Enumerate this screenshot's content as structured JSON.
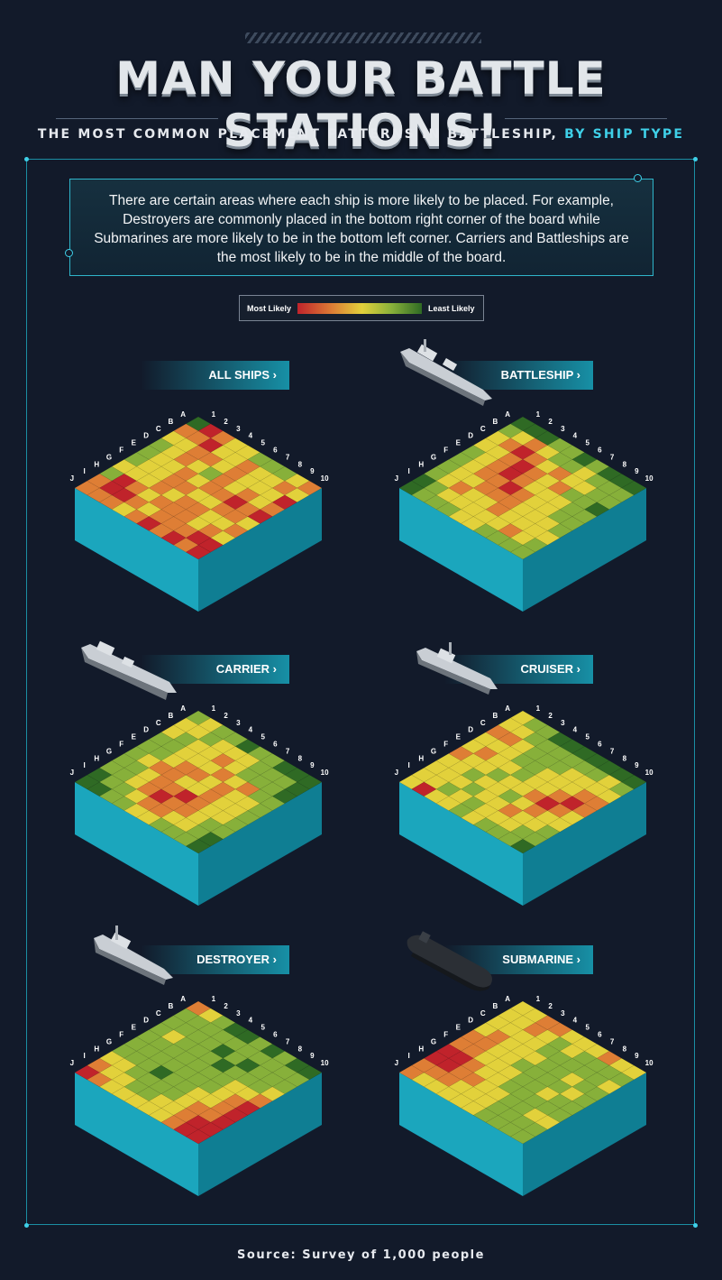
{
  "header": {
    "title": "MAN YOUR BATTLE STATIONS!",
    "subtitle_main": "THE MOST COMMON PLACEMENT PATTERNS IN BATTLESHIP,",
    "subtitle_highlight": "BY SHIP TYPE"
  },
  "intro_text": "There are certain areas where each ship is more likely to be placed. For example, Destroyers are commonly placed in the bottom right corner of the board while Submarines are more likely to be in the bottom left corner. Carriers and Battleships are the most likely to be in the middle of the board.",
  "legend": {
    "most_label": "Most Likely",
    "least_label": "Least Likely",
    "scale_colors": [
      "#c0232b",
      "#de7e35",
      "#e2d13b",
      "#87b03a",
      "#2f6a24"
    ]
  },
  "source": "Source: Survey of 1,000 people",
  "chart_data": [
    {
      "type": "heatmap",
      "title": "ALL SHIPS",
      "rows": [
        "A",
        "B",
        "C",
        "D",
        "E",
        "F",
        "G",
        "H",
        "I",
        "J"
      ],
      "columns": [
        "1",
        "2",
        "3",
        "4",
        "5",
        "6",
        "7",
        "8",
        "9",
        "10"
      ],
      "values": [
        [
          5,
          1,
          2,
          3,
          3,
          4,
          4,
          4,
          3,
          2
        ],
        [
          2,
          2,
          1,
          3,
          3,
          2,
          3,
          3,
          2,
          3
        ],
        [
          3,
          3,
          2,
          2,
          3,
          2,
          3,
          3,
          3,
          1
        ],
        [
          4,
          3,
          2,
          3,
          4,
          2,
          3,
          2,
          3,
          2
        ],
        [
          4,
          3,
          3,
          2,
          3,
          2,
          2,
          1,
          2,
          1
        ],
        [
          4,
          3,
          3,
          2,
          2,
          3,
          3,
          2,
          2,
          3
        ],
        [
          3,
          3,
          3,
          2,
          3,
          2,
          2,
          3,
          3,
          2
        ],
        [
          4,
          1,
          2,
          3,
          2,
          2,
          2,
          3,
          2,
          3
        ],
        [
          2,
          1,
          1,
          2,
          3,
          2,
          2,
          2,
          1,
          1
        ],
        [
          2,
          2,
          2,
          3,
          2,
          1,
          2,
          1,
          2,
          1
        ]
      ]
    },
    {
      "type": "heatmap",
      "title": "BATTLESHIP",
      "rows": [
        "A",
        "B",
        "C",
        "D",
        "E",
        "F",
        "G",
        "H",
        "I",
        "J"
      ],
      "columns": [
        "1",
        "2",
        "3",
        "4",
        "5",
        "6",
        "7",
        "8",
        "9",
        "10"
      ],
      "values": [
        [
          5,
          5,
          5,
          4,
          4,
          5,
          4,
          5,
          5,
          5
        ],
        [
          4,
          3,
          2,
          3,
          4,
          4,
          3,
          4,
          4,
          4
        ],
        [
          3,
          2,
          1,
          2,
          3,
          2,
          3,
          3,
          4,
          4
        ],
        [
          3,
          3,
          2,
          1,
          2,
          3,
          2,
          4,
          4,
          5
        ],
        [
          4,
          3,
          2,
          1,
          2,
          3,
          3,
          3,
          4,
          4
        ],
        [
          4,
          3,
          2,
          2,
          1,
          2,
          3,
          3,
          4,
          4
        ],
        [
          4,
          3,
          3,
          2,
          2,
          2,
          3,
          3,
          3,
          4
        ],
        [
          4,
          3,
          2,
          3,
          3,
          2,
          3,
          3,
          3,
          3
        ],
        [
          5,
          4,
          3,
          3,
          3,
          3,
          3,
          2,
          3,
          4
        ],
        [
          5,
          4,
          4,
          4,
          3,
          3,
          4,
          4,
          4,
          4
        ]
      ]
    },
    {
      "type": "heatmap",
      "title": "CARRIER",
      "rows": [
        "A",
        "B",
        "C",
        "D",
        "E",
        "F",
        "G",
        "H",
        "I",
        "J"
      ],
      "columns": [
        "1",
        "2",
        "3",
        "4",
        "5",
        "6",
        "7",
        "8",
        "9",
        "10"
      ],
      "values": [
        [
          4,
          3,
          4,
          4,
          5,
          4,
          4,
          5,
          5,
          5
        ],
        [
          3,
          3,
          4,
          3,
          3,
          3,
          4,
          4,
          4,
          5
        ],
        [
          3,
          4,
          3,
          3,
          2,
          3,
          4,
          4,
          4,
          5
        ],
        [
          4,
          4,
          3,
          3,
          3,
          2,
          3,
          2,
          4,
          4
        ],
        [
          4,
          4,
          3,
          2,
          2,
          3,
          2,
          3,
          3,
          4
        ],
        [
          4,
          3,
          2,
          2,
          3,
          3,
          2,
          3,
          3,
          4
        ],
        [
          4,
          4,
          3,
          2,
          2,
          1,
          2,
          3,
          3,
          4
        ],
        [
          4,
          4,
          3,
          2,
          1,
          2,
          2,
          3,
          4,
          4
        ],
        [
          5,
          4,
          4,
          3,
          2,
          2,
          3,
          3,
          4,
          5
        ],
        [
          5,
          5,
          4,
          4,
          3,
          3,
          4,
          4,
          4,
          5
        ]
      ]
    },
    {
      "type": "heatmap",
      "title": "CRUISER",
      "rows": [
        "A",
        "B",
        "C",
        "D",
        "E",
        "F",
        "G",
        "H",
        "I",
        "J"
      ],
      "columns": [
        "1",
        "2",
        "3",
        "4",
        "5",
        "6",
        "7",
        "8",
        "9",
        "10"
      ],
      "values": [
        [
          3,
          4,
          4,
          5,
          5,
          5,
          5,
          5,
          5,
          5
        ],
        [
          3,
          3,
          4,
          4,
          4,
          4,
          4,
          4,
          3,
          4
        ],
        [
          2,
          2,
          3,
          4,
          4,
          4,
          3,
          3,
          3,
          3
        ],
        [
          3,
          3,
          3,
          4,
          4,
          3,
          3,
          3,
          2,
          2
        ],
        [
          3,
          2,
          3,
          3,
          4,
          3,
          3,
          2,
          1,
          2
        ],
        [
          2,
          3,
          3,
          4,
          3,
          3,
          2,
          1,
          2,
          3
        ],
        [
          3,
          3,
          4,
          3,
          3,
          4,
          3,
          2,
          3,
          3
        ],
        [
          3,
          3,
          3,
          4,
          3,
          3,
          2,
          3,
          3,
          4
        ],
        [
          3,
          3,
          4,
          3,
          4,
          3,
          3,
          3,
          4,
          4
        ],
        [
          3,
          1,
          3,
          3,
          4,
          3,
          4,
          4,
          4,
          5
        ]
      ]
    },
    {
      "type": "heatmap",
      "title": "DESTROYER",
      "rows": [
        "A",
        "B",
        "C",
        "D",
        "E",
        "F",
        "G",
        "H",
        "I",
        "J"
      ],
      "columns": [
        "1",
        "2",
        "3",
        "4",
        "5",
        "6",
        "7",
        "8",
        "9",
        "10"
      ],
      "values": [
        [
          2,
          3,
          4,
          5,
          5,
          4,
          5,
          4,
          5,
          5
        ],
        [
          4,
          4,
          4,
          4,
          4,
          4,
          4,
          4,
          4,
          4
        ],
        [
          4,
          4,
          4,
          4,
          5,
          4,
          5,
          4,
          4,
          4
        ],
        [
          4,
          3,
          4,
          4,
          4,
          5,
          4,
          4,
          4,
          3
        ],
        [
          4,
          4,
          4,
          4,
          4,
          4,
          4,
          3,
          3,
          2
        ],
        [
          4,
          4,
          4,
          4,
          4,
          4,
          4,
          3,
          2,
          1
        ],
        [
          4,
          4,
          4,
          5,
          4,
          4,
          3,
          3,
          2,
          1
        ],
        [
          3,
          3,
          4,
          4,
          4,
          4,
          3,
          2,
          2,
          1
        ],
        [
          2,
          3,
          3,
          4,
          4,
          3,
          3,
          2,
          1,
          1
        ],
        [
          1,
          2,
          3,
          3,
          3,
          3,
          3,
          2,
          1,
          1
        ]
      ]
    },
    {
      "type": "heatmap",
      "title": "SUBMARINE",
      "rows": [
        "A",
        "B",
        "C",
        "D",
        "E",
        "F",
        "G",
        "H",
        "I",
        "J"
      ],
      "columns": [
        "1",
        "2",
        "3",
        "4",
        "5",
        "6",
        "7",
        "8",
        "9",
        "10"
      ],
      "values": [
        [
          3,
          3,
          2,
          2,
          3,
          3,
          3,
          2,
          3,
          3
        ],
        [
          3,
          3,
          2,
          3,
          4,
          3,
          4,
          4,
          4,
          4
        ],
        [
          3,
          3,
          3,
          3,
          4,
          4,
          4,
          4,
          4,
          3
        ],
        [
          3,
          2,
          3,
          3,
          3,
          4,
          4,
          3,
          4,
          4
        ],
        [
          2,
          2,
          3,
          3,
          4,
          4,
          4,
          4,
          3,
          4
        ],
        [
          2,
          2,
          3,
          3,
          3,
          4,
          4,
          3,
          4,
          4
        ],
        [
          1,
          1,
          2,
          3,
          3,
          4,
          4,
          4,
          4,
          4
        ],
        [
          1,
          1,
          2,
          2,
          3,
          3,
          4,
          4,
          3,
          3
        ],
        [
          2,
          2,
          2,
          3,
          3,
          3,
          4,
          4,
          4,
          4
        ],
        [
          2,
          3,
          3,
          3,
          3,
          3,
          4,
          4,
          4,
          4
        ]
      ]
    }
  ]
}
